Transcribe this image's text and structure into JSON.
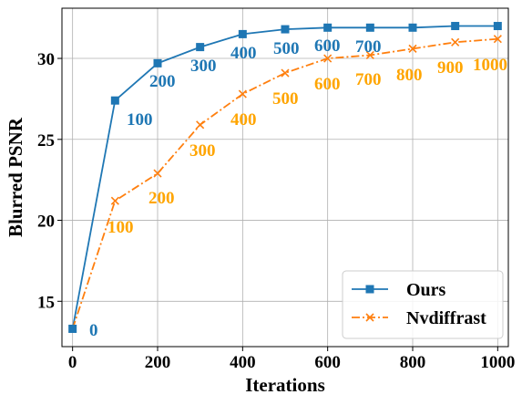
{
  "chart_data": {
    "type": "line",
    "title": "",
    "xlabel": "Iterations",
    "ylabel": "Blurred PSNR",
    "xlim": [
      -25,
      1025
    ],
    "ylim": [
      12.2,
      33.1
    ],
    "xticks": [
      0,
      200,
      400,
      600,
      800,
      1000
    ],
    "yticks": [
      15,
      20,
      25,
      30
    ],
    "grid": true,
    "legend_position": "lower-right",
    "x": [
      0,
      100,
      200,
      300,
      400,
      500,
      600,
      700,
      800,
      900,
      1000
    ],
    "series": [
      {
        "name": "Ours",
        "color": "#1f77b4",
        "marker": "square",
        "linestyle": "solid",
        "values": [
          13.3,
          27.4,
          29.7,
          30.7,
          31.5,
          31.8,
          31.9,
          31.9,
          31.9,
          32.0,
          32.0
        ],
        "point_labels": [
          "0",
          "100",
          "200",
          "300",
          "400",
          "500",
          "600",
          "700"
        ]
      },
      {
        "name": "Nvdiffrast",
        "color": "#ff7f0e",
        "marker": "x",
        "linestyle": "dashdot",
        "values": [
          13.3,
          21.2,
          22.9,
          25.9,
          27.8,
          29.1,
          30.0,
          30.2,
          30.6,
          31.0,
          31.2
        ],
        "point_labels": [
          "100",
          "200",
          "300",
          "400",
          "500",
          "600",
          "700",
          "800",
          "900",
          "1000"
        ]
      }
    ]
  }
}
